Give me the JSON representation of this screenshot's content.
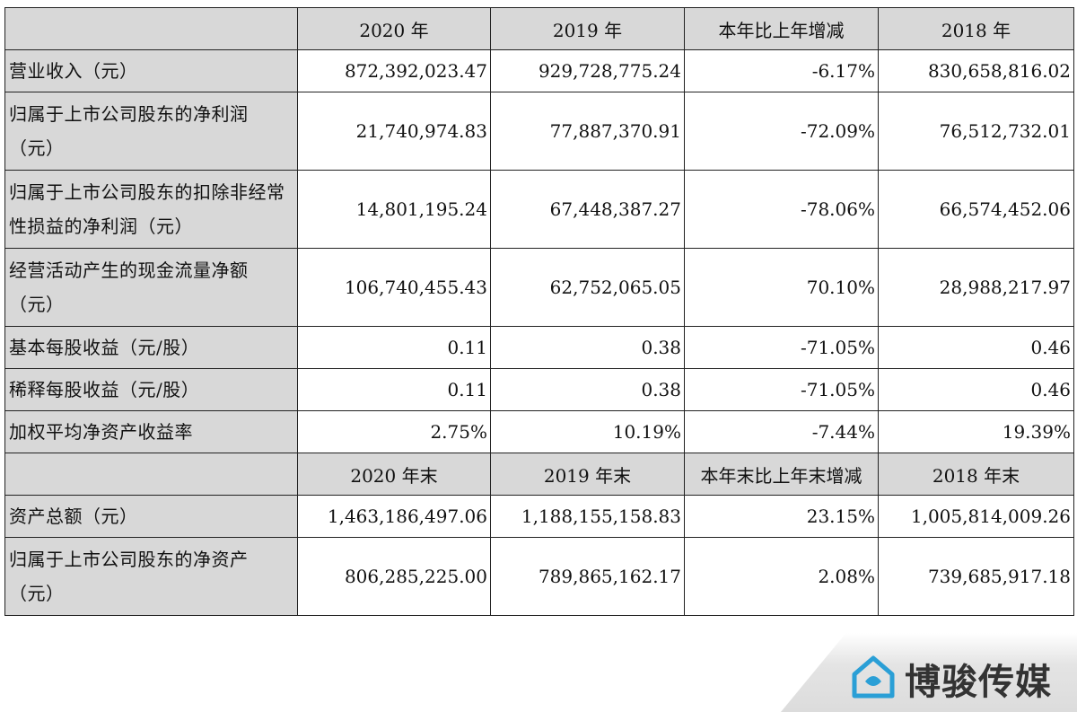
{
  "header1": [
    "",
    "2020 年",
    "2019 年",
    "本年比上年增减",
    "2018 年"
  ],
  "rows1": [
    {
      "label": "营业收入（元）",
      "v2020": "872,392,023.47",
      "v2019": "929,728,775.24",
      "change": "-6.17%",
      "v2018": "830,658,816.02",
      "tall": false
    },
    {
      "label": "归属于上市公司股东的净利润（元）",
      "v2020": "21,740,974.83",
      "v2019": "77,887,370.91",
      "change": "-72.09%",
      "v2018": "76,512,732.01",
      "tall": true
    },
    {
      "label": "归属于上市公司股东的扣除非经常性损益的净利润（元）",
      "v2020": "14,801,195.24",
      "v2019": "67,448,387.27",
      "change": "-78.06%",
      "v2018": "66,574,452.06",
      "tall": true
    },
    {
      "label": "经营活动产生的现金流量净额（元）",
      "v2020": "106,740,455.43",
      "v2019": "62,752,065.05",
      "change": "70.10%",
      "v2018": "28,988,217.97",
      "tall": true
    },
    {
      "label": "基本每股收益（元/股）",
      "v2020": "0.11",
      "v2019": "0.38",
      "change": "-71.05%",
      "v2018": "0.46",
      "tall": false
    },
    {
      "label": "稀释每股收益（元/股）",
      "v2020": "0.11",
      "v2019": "0.38",
      "change": "-71.05%",
      "v2018": "0.46",
      "tall": false
    },
    {
      "label": "加权平均净资产收益率",
      "v2020": "2.75%",
      "v2019": "10.19%",
      "change": "-7.44%",
      "v2018": "19.39%",
      "tall": false
    }
  ],
  "header2": [
    "",
    "2020 年末",
    "2019 年末",
    "本年末比上年末增减",
    "2018 年末"
  ],
  "rows2": [
    {
      "label": "资产总额（元）",
      "v2020": "1,463,186,497.06",
      "v2019": "1,188,155,158.83",
      "change": "23.15%",
      "v2018": "1,005,814,009.26",
      "tall": false
    },
    {
      "label": "归属于上市公司股东的净资产（元）",
      "v2020": "806,285,225.00",
      "v2019": "789,865,162.17",
      "change": "2.08%",
      "v2018": "739,685,917.18",
      "tall": true
    }
  ],
  "watermark": {
    "brand": "博骏传媒",
    "icon": "house-badge-icon",
    "accent": "#2a9fd6"
  }
}
